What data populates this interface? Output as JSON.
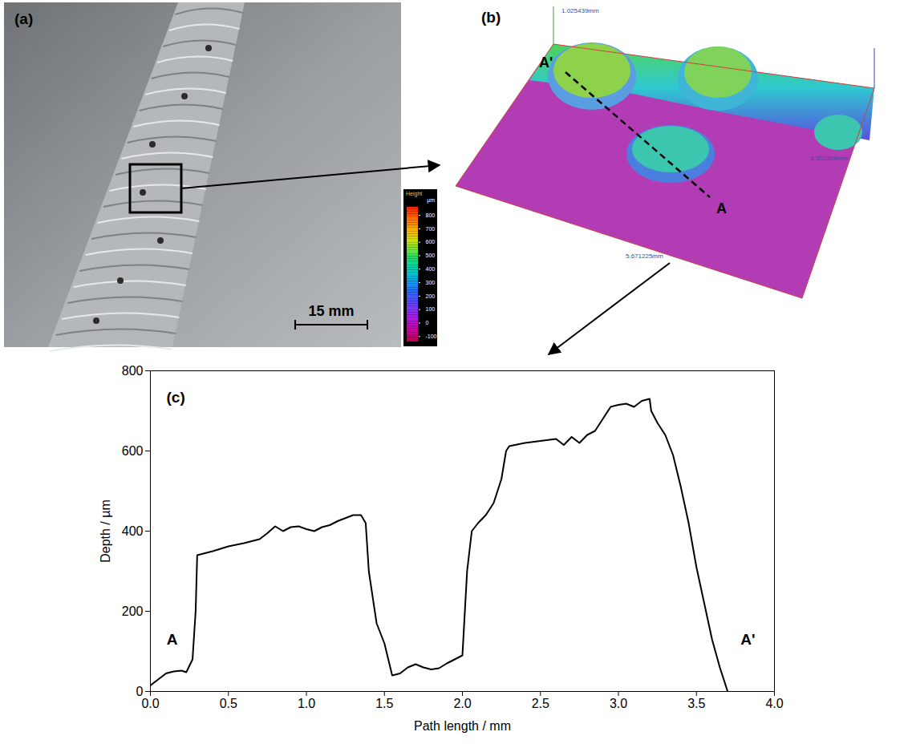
{
  "figure": {
    "panel_a": {
      "label": "(a)",
      "scale_bar": "15 mm"
    },
    "panel_b": {
      "label": "(b)",
      "section_start": "A",
      "section_end": "A'",
      "box_texts": [
        "1.025439mm",
        "5.671225mm",
        "3.302309mm"
      ],
      "colorbar": {
        "title": "Height",
        "unit": "µm",
        "range": [
          -140,
          860
        ],
        "ticks": [
          -100,
          0,
          100,
          200,
          300,
          400,
          500,
          600,
          700,
          800
        ]
      }
    }
  },
  "chart_data": {
    "type": "line",
    "panel_label": "(c)",
    "xlabel": "Path length / mm",
    "ylabel": "Depth / µm",
    "color": "#000000",
    "x": [
      0,
      0.05,
      0.1,
      0.15,
      0.2,
      0.23,
      0.27,
      0.29,
      0.3,
      0.35,
      0.4,
      0.5,
      0.6,
      0.7,
      0.75,
      0.8,
      0.85,
      0.9,
      0.95,
      1.0,
      1.05,
      1.1,
      1.15,
      1.2,
      1.3,
      1.35,
      1.38,
      1.4,
      1.45,
      1.5,
      1.55,
      1.6,
      1.65,
      1.7,
      1.75,
      1.8,
      1.85,
      1.9,
      1.95,
      2.0,
      2.03,
      2.06,
      2.1,
      2.15,
      2.2,
      2.25,
      2.28,
      2.3,
      2.4,
      2.5,
      2.6,
      2.65,
      2.7,
      2.75,
      2.8,
      2.85,
      2.9,
      2.95,
      3.0,
      3.05,
      3.1,
      3.15,
      3.2,
      3.21,
      3.25,
      3.3,
      3.35,
      3.4,
      3.45,
      3.5,
      3.55,
      3.6,
      3.65,
      3.7
    ],
    "values": [
      15,
      30,
      45,
      50,
      52,
      48,
      80,
      200,
      340,
      345,
      350,
      362,
      370,
      380,
      395,
      412,
      400,
      410,
      412,
      405,
      400,
      410,
      415,
      425,
      440,
      440,
      420,
      300,
      170,
      120,
      40,
      45,
      60,
      68,
      60,
      55,
      58,
      70,
      80,
      90,
      300,
      400,
      420,
      440,
      470,
      530,
      600,
      612,
      620,
      625,
      630,
      615,
      635,
      620,
      640,
      650,
      680,
      710,
      715,
      718,
      710,
      725,
      730,
      700,
      670,
      640,
      590,
      510,
      420,
      310,
      220,
      130,
      60,
      0
    ],
    "xlim": [
      0,
      4
    ],
    "xticks": [
      {
        "value": 0,
        "label": "0.0"
      },
      {
        "value": 0.5,
        "label": "0.5"
      },
      {
        "value": 1,
        "label": "1.0"
      },
      {
        "value": 1.5,
        "label": "1.5"
      },
      {
        "value": 2,
        "label": "2.0"
      },
      {
        "value": 2.5,
        "label": "2.5"
      },
      {
        "value": 3,
        "label": "3.0"
      },
      {
        "value": 3.5,
        "label": "3.5"
      },
      {
        "value": 4,
        "label": "4.0"
      }
    ],
    "ylim": [
      0,
      800
    ],
    "yticks": [
      0,
      200,
      400,
      600,
      800
    ],
    "annotations": [
      {
        "text": "A",
        "x": 0.14,
        "y": 130
      },
      {
        "text": "A'",
        "x": 3.83,
        "y": 130
      }
    ]
  }
}
